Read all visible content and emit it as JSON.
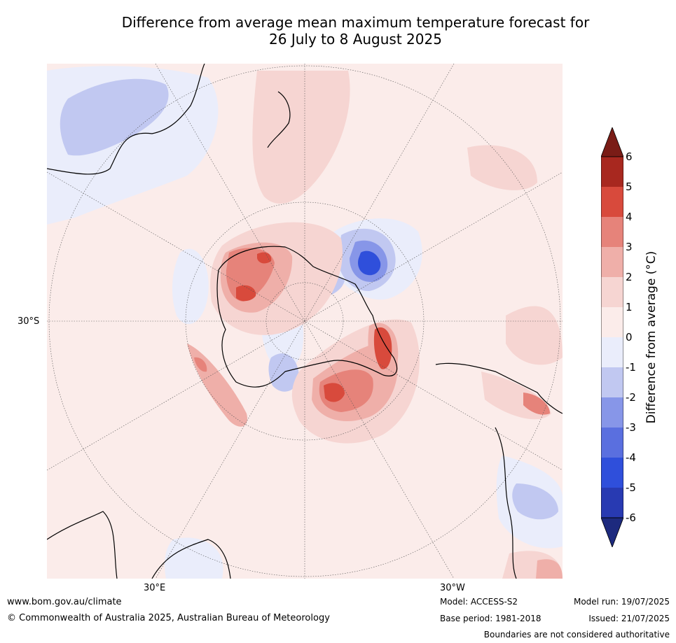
{
  "title_line1": "Difference from average mean maximum temperature forecast for",
  "title_line2": "26 July to 8 August 2025",
  "map_labels": {
    "lat": "30°S",
    "lon_east": "30°E",
    "lon_west": "30°W"
  },
  "colorbar": {
    "label": "Difference from average (°C)",
    "ticks": [
      "6",
      "5",
      "4",
      "3",
      "2",
      "1",
      "0",
      "-1",
      "-2",
      "-3",
      "-4",
      "-5",
      "-6"
    ],
    "colors": [
      "#7a1c16",
      "#a8281f",
      "#d84a3c",
      "#e6837a",
      "#efafa9",
      "#f6d5d2",
      "#fbecea",
      "#eaedfb",
      "#c1c8f1",
      "#8796e8",
      "#5a6fdf",
      "#2f4fdb",
      "#283ab2",
      "#1d2a7e"
    ]
  },
  "footer": {
    "url": "www.bom.gov.au/climate",
    "copyright": "© Commonwealth of Australia 2025, Australian Bureau of Meteorology",
    "model": "Model: ACCESS-S2",
    "base_period": "Base period: 1981-2018",
    "model_run": "Model run: 19/07/2025",
    "issued": "Issued: 21/07/2025",
    "disclaimer": "Boundaries are not considered authoritative"
  }
}
